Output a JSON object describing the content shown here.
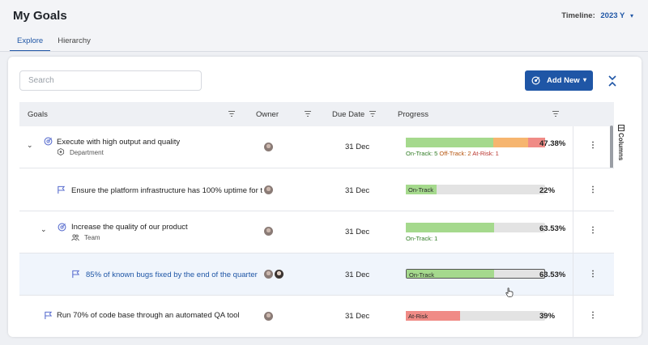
{
  "header": {
    "title": "My Goals",
    "timeline_label": "Timeline:",
    "timeline_value": "2023 Y"
  },
  "tabs": [
    {
      "label": "Explore",
      "active": true
    },
    {
      "label": "Hierarchy",
      "active": false
    }
  ],
  "toolbar": {
    "search_placeholder": "Search",
    "add_button_label": "Add New"
  },
  "table": {
    "columns": {
      "goals": "Goals",
      "owner": "Owner",
      "due_date": "Due Date",
      "progress": "Progress"
    },
    "columns_tab_label": "Columns",
    "rows": [
      {
        "title": "Execute with high output and quality",
        "sub": "Department",
        "due": "31 Dec",
        "progress_pct": "47.38%",
        "counts": {
          "on": "On-Track: 5",
          "off": "Off-Track: 2",
          "risk": "At-Risk: 1"
        },
        "segments": {
          "on_track": 5,
          "off_track": 2,
          "at_risk": 1
        }
      },
      {
        "title": "Ensure the platform infrastructure has 100% uptime for t",
        "due": "31 Dec",
        "progress_pct": "22%",
        "status_label": "On-Track",
        "fill": 0.22
      },
      {
        "title": "Increase the quality of our product",
        "sub": "Team",
        "due": "31 Dec",
        "progress_pct": "63.53%",
        "counts": {
          "on": "On-Track: 1"
        },
        "fill": 0.6353
      },
      {
        "title": "85% of known bugs fixed by the end of the quarter",
        "due": "31 Dec",
        "progress_pct": "63.53%",
        "status_label": "On-Track",
        "fill": 0.6353
      },
      {
        "title": "Run 70% of code base through an automated QA tool",
        "due": "31 Dec",
        "progress_pct": "39%",
        "status_label": "At-Risk",
        "fill": 0.39
      }
    ]
  },
  "colors": {
    "accent": "#1f56a6",
    "on_track": "#a5d98d",
    "off_track": "#f6b56f",
    "at_risk": "#f08b86"
  }
}
